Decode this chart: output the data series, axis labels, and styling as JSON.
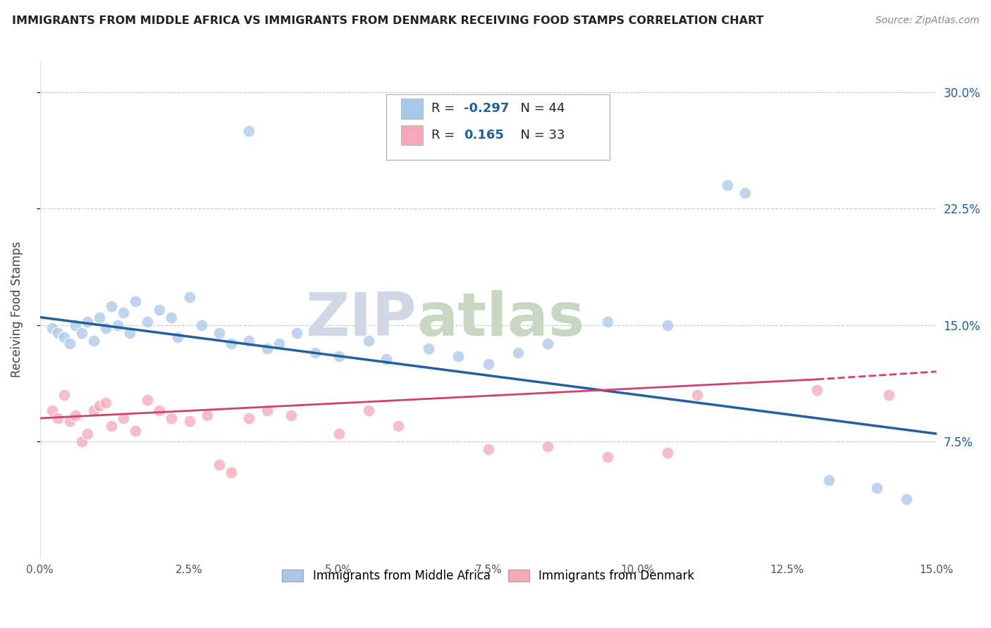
{
  "title": "IMMIGRANTS FROM MIDDLE AFRICA VS IMMIGRANTS FROM DENMARK RECEIVING FOOD STAMPS CORRELATION CHART",
  "source": "Source: ZipAtlas.com",
  "ylabel": "Receiving Food Stamps",
  "xlim": [
    0.0,
    15.0
  ],
  "ylim": [
    0.0,
    32.0
  ],
  "yticks": [
    7.5,
    15.0,
    22.5,
    30.0
  ],
  "xticks": [
    0.0,
    2.5,
    5.0,
    7.5,
    10.0,
    12.5,
    15.0
  ],
  "blue_label": "Immigrants from Middle Africa",
  "pink_label": "Immigrants from Denmark",
  "blue_R": "-0.297",
  "blue_N": "44",
  "pink_R": "0.165",
  "pink_N": "33",
  "blue_color": "#A8C8E8",
  "pink_color": "#F4A8B8",
  "blue_line_color": "#2060A0",
  "pink_line_color": "#D04070",
  "background_color": "#FFFFFF",
  "grid_color": "#C8C8C8",
  "watermark_color": "#D0D8E8",
  "watermark_color2": "#C8D8C0",
  "blue_dots": [
    [
      0.2,
      14.8
    ],
    [
      0.3,
      14.5
    ],
    [
      0.4,
      14.2
    ],
    [
      0.5,
      13.8
    ],
    [
      0.6,
      15.0
    ],
    [
      0.7,
      14.5
    ],
    [
      0.8,
      15.2
    ],
    [
      0.9,
      14.0
    ],
    [
      1.0,
      15.5
    ],
    [
      1.1,
      14.8
    ],
    [
      1.2,
      16.2
    ],
    [
      1.3,
      15.0
    ],
    [
      1.4,
      15.8
    ],
    [
      1.5,
      14.5
    ],
    [
      1.6,
      16.5
    ],
    [
      1.8,
      15.2
    ],
    [
      2.0,
      16.0
    ],
    [
      2.2,
      15.5
    ],
    [
      2.3,
      14.2
    ],
    [
      2.5,
      16.8
    ],
    [
      2.7,
      15.0
    ],
    [
      3.0,
      14.5
    ],
    [
      3.2,
      13.8
    ],
    [
      3.5,
      14.0
    ],
    [
      3.8,
      13.5
    ],
    [
      4.0,
      13.8
    ],
    [
      4.3,
      14.5
    ],
    [
      4.6,
      13.2
    ],
    [
      5.0,
      13.0
    ],
    [
      5.5,
      14.0
    ],
    [
      5.8,
      12.8
    ],
    [
      6.5,
      13.5
    ],
    [
      7.0,
      13.0
    ],
    [
      7.5,
      12.5
    ],
    [
      8.0,
      13.2
    ],
    [
      8.5,
      13.8
    ],
    [
      9.5,
      15.2
    ],
    [
      10.5,
      15.0
    ],
    [
      11.5,
      24.0
    ],
    [
      11.8,
      23.5
    ],
    [
      13.2,
      5.0
    ],
    [
      14.0,
      4.5
    ],
    [
      14.5,
      3.8
    ],
    [
      3.5,
      27.5
    ]
  ],
  "pink_dots": [
    [
      0.2,
      9.5
    ],
    [
      0.3,
      9.0
    ],
    [
      0.4,
      10.5
    ],
    [
      0.5,
      8.8
    ],
    [
      0.6,
      9.2
    ],
    [
      0.7,
      7.5
    ],
    [
      0.8,
      8.0
    ],
    [
      0.9,
      9.5
    ],
    [
      1.0,
      9.8
    ],
    [
      1.1,
      10.0
    ],
    [
      1.2,
      8.5
    ],
    [
      1.4,
      9.0
    ],
    [
      1.6,
      8.2
    ],
    [
      1.8,
      10.2
    ],
    [
      2.0,
      9.5
    ],
    [
      2.2,
      9.0
    ],
    [
      2.5,
      8.8
    ],
    [
      2.8,
      9.2
    ],
    [
      3.0,
      6.0
    ],
    [
      3.2,
      5.5
    ],
    [
      3.5,
      9.0
    ],
    [
      3.8,
      9.5
    ],
    [
      4.2,
      9.2
    ],
    [
      5.0,
      8.0
    ],
    [
      5.5,
      9.5
    ],
    [
      6.0,
      8.5
    ],
    [
      7.5,
      7.0
    ],
    [
      8.5,
      7.2
    ],
    [
      9.5,
      6.5
    ],
    [
      10.5,
      6.8
    ],
    [
      11.0,
      10.5
    ],
    [
      13.0,
      10.8
    ],
    [
      14.2,
      10.5
    ]
  ],
  "blue_reg": [
    0.0,
    15.5,
    15.0,
    8.0
  ],
  "pink_reg_solid": [
    0.0,
    9.0,
    13.0,
    11.5
  ],
  "pink_reg_dashed": [
    13.0,
    11.5,
    15.0,
    12.0
  ]
}
